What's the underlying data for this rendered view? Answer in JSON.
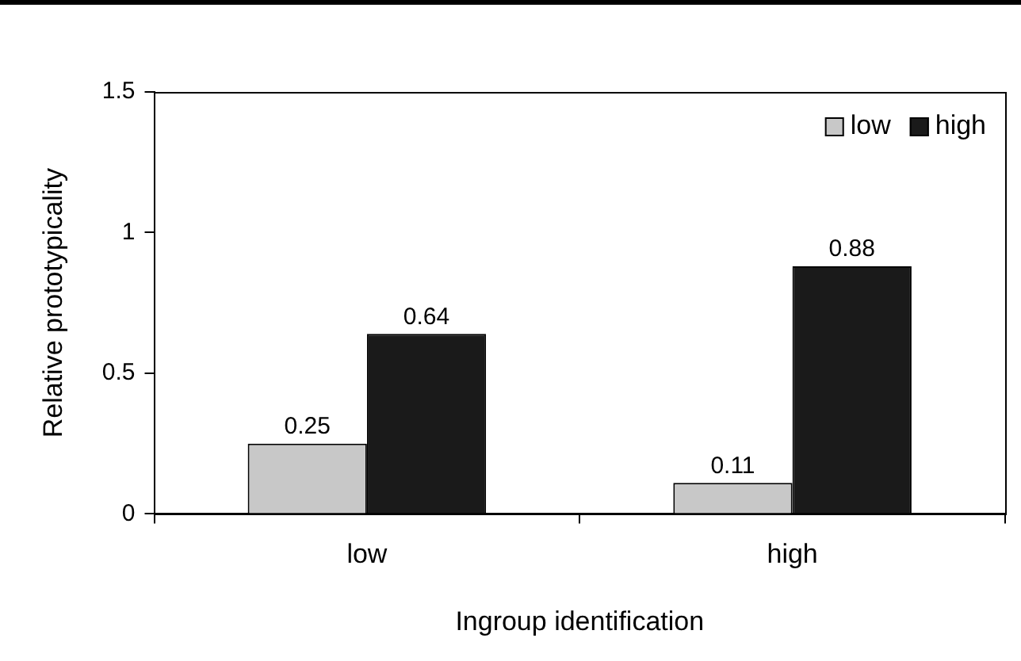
{
  "chart_data": {
    "type": "bar",
    "xlabel": "Ingroup identification",
    "ylabel": "Relative prototypicality",
    "categories": [
      "low",
      "high"
    ],
    "series": [
      {
        "name": "low",
        "color": "#c8c8c8",
        "values": [
          0.25,
          0.11
        ]
      },
      {
        "name": "high",
        "color": "#1a1a1a",
        "values": [
          0.64,
          0.88
        ]
      }
    ],
    "ylim": [
      0,
      1.5
    ],
    "yticks": [
      0,
      0.5,
      1,
      1.5
    ],
    "grid": false,
    "legend": "top right",
    "data_labels": true
  }
}
